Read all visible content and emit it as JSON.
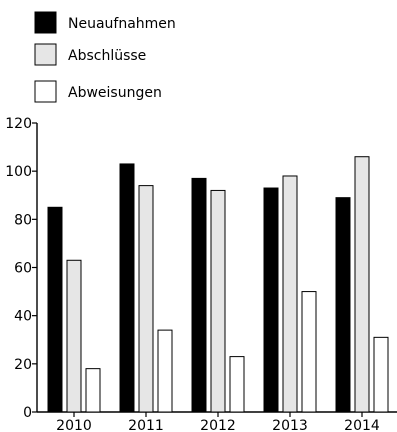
{
  "chart_data": {
    "type": "bar",
    "title": "",
    "xlabel": "",
    "ylabel": "",
    "categories": [
      "2010",
      "2011",
      "2012",
      "2013",
      "2014"
    ],
    "series": [
      {
        "name": "Neuaufnahmen",
        "color": "#000000",
        "values": [
          85,
          103,
          97,
          93,
          89
        ]
      },
      {
        "name": "Abschlüsse",
        "color": "#e6e6e6",
        "values": [
          63,
          94,
          92,
          98,
          106
        ]
      },
      {
        "name": "Abweisungen",
        "color": "#ffffff",
        "values": [
          18,
          34,
          23,
          50,
          31
        ]
      }
    ],
    "ylim": [
      0,
      120
    ],
    "yticks": [
      0,
      20,
      40,
      60,
      80,
      100,
      120
    ],
    "grid": false,
    "legend_position": "top-left"
  }
}
